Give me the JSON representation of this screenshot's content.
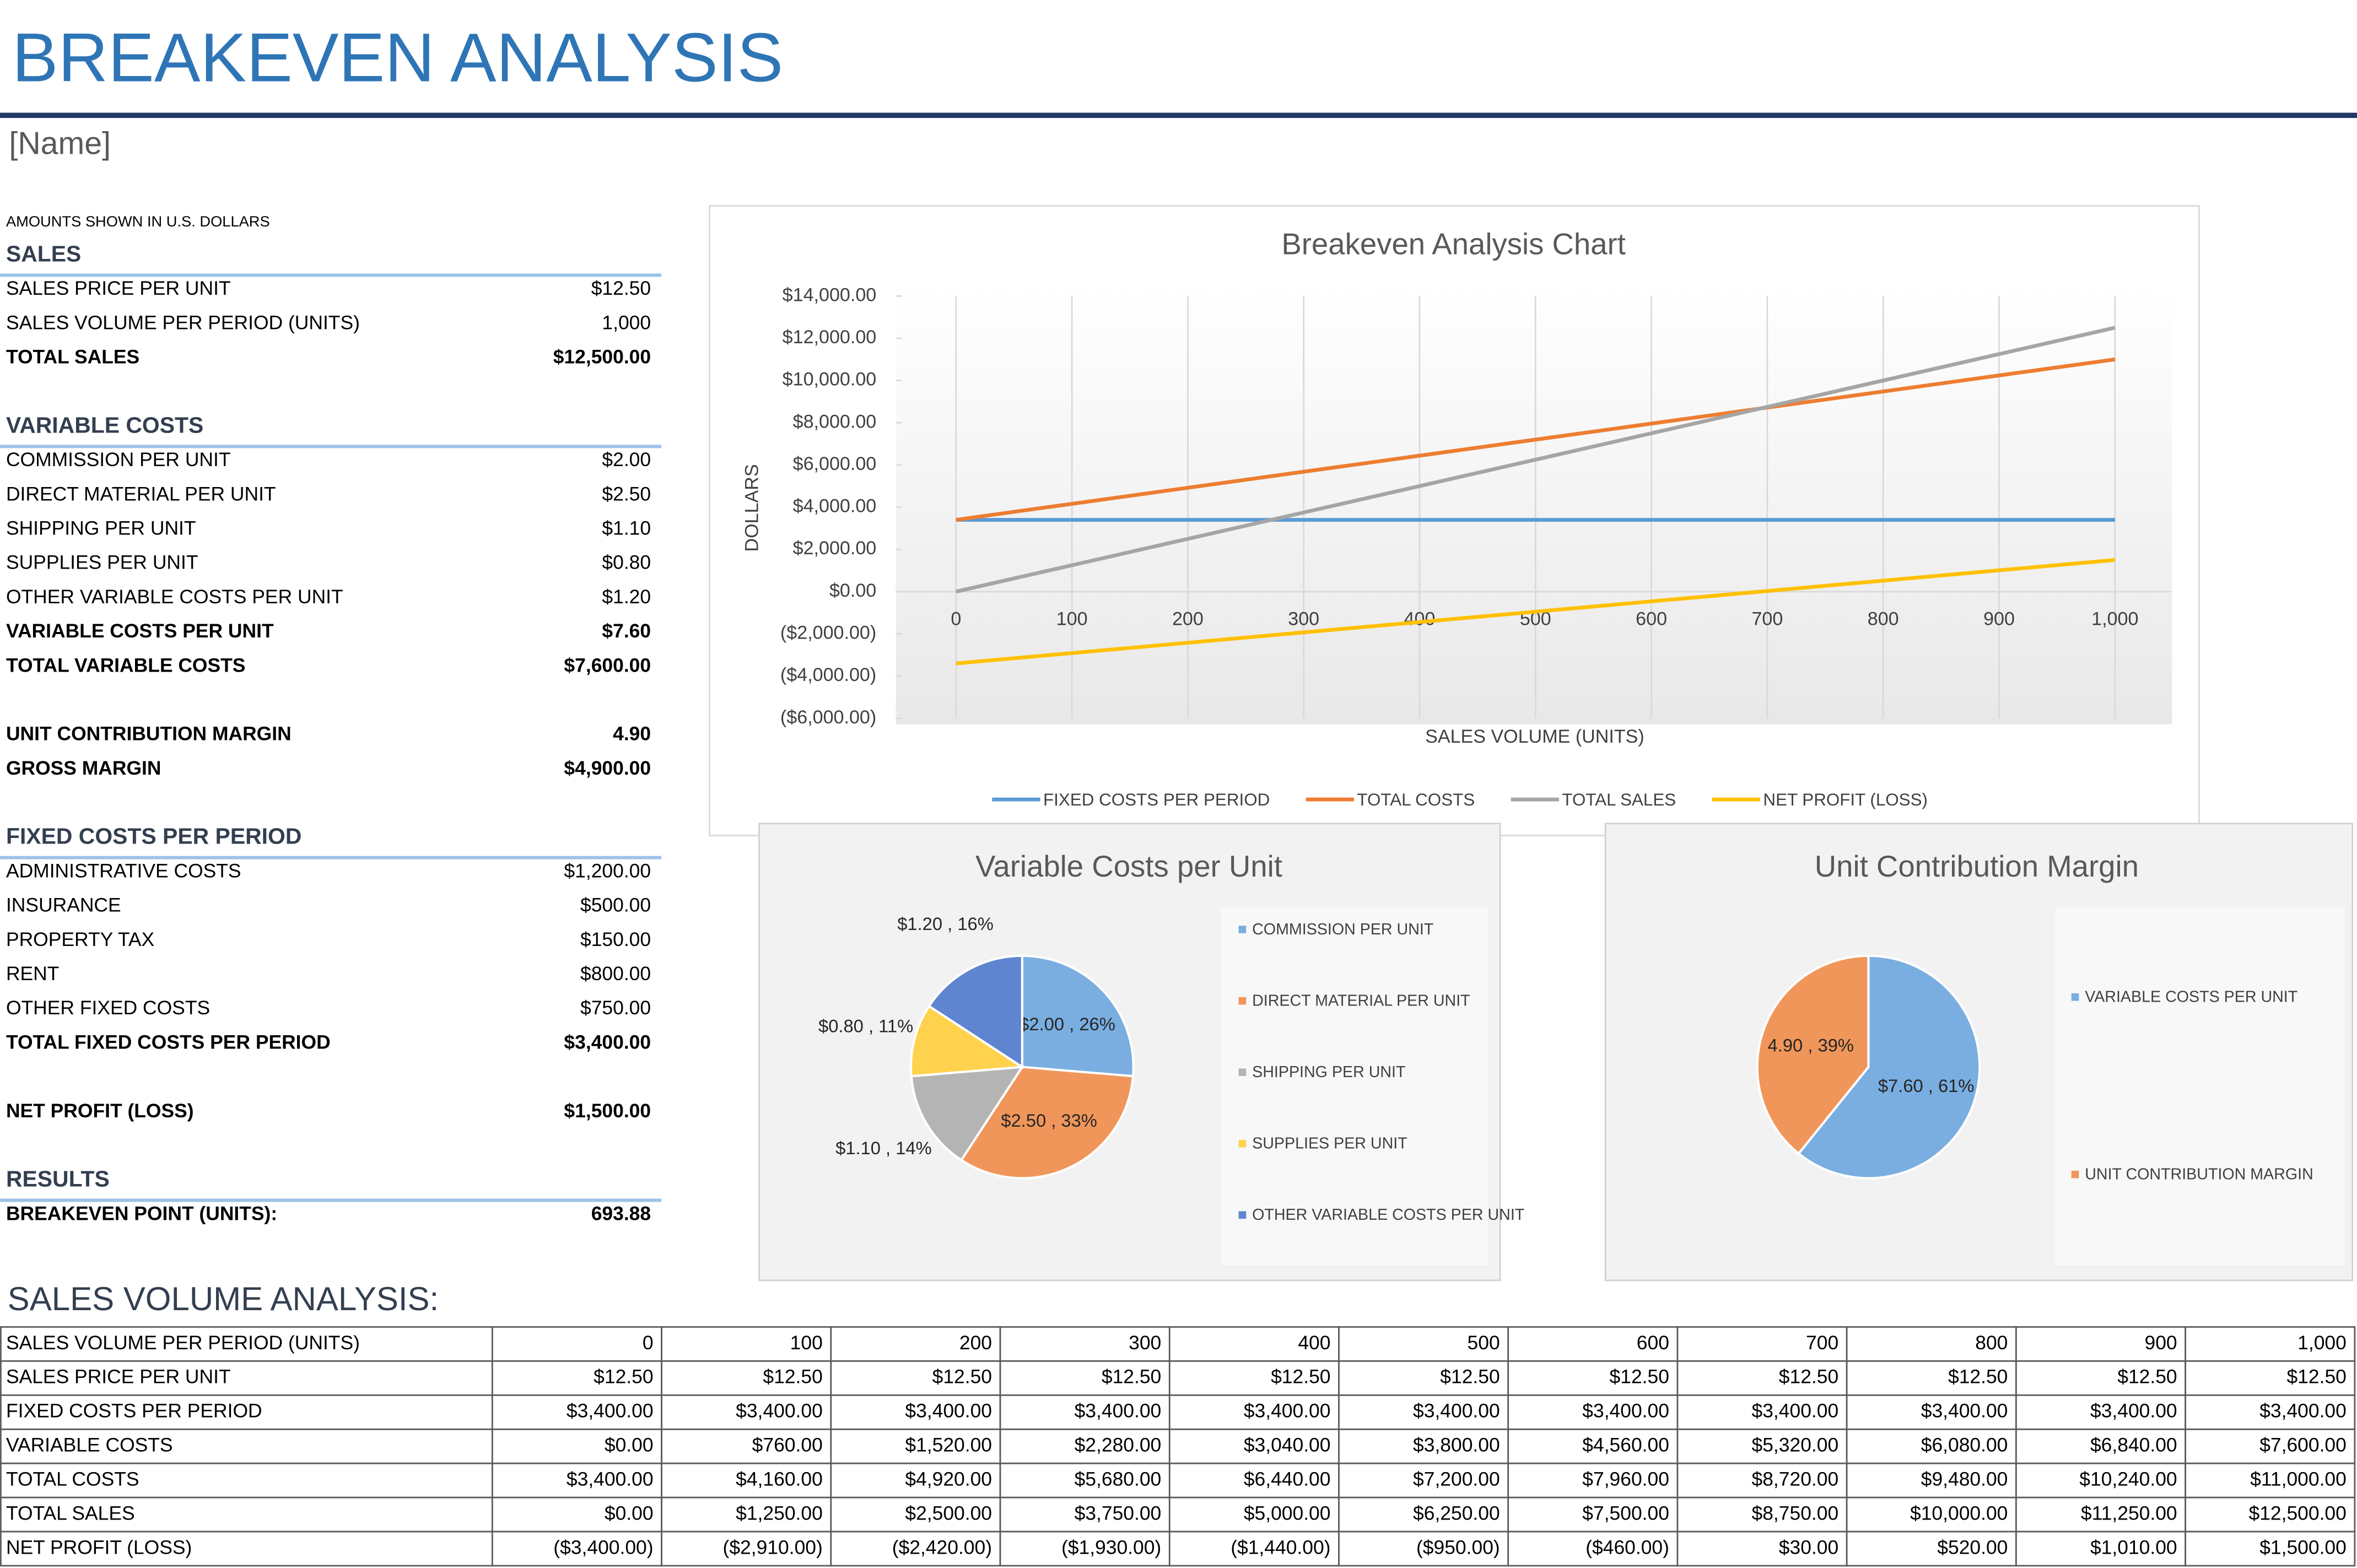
{
  "header": {
    "title": "BREAKEVEN ANALYSIS",
    "name": "[Name]",
    "note": "AMOUNTS SHOWN IN U.S. DOLLARS"
  },
  "sections": [
    {
      "title": "SALES",
      "rows": [
        {
          "label": "SALES PRICE PER UNIT",
          "value": "$12.50"
        },
        {
          "label": "SALES VOLUME PER PERIOD (UNITS)",
          "value": "1,000"
        },
        {
          "label": "TOTAL SALES",
          "value": "$12,500.00",
          "bold": true
        }
      ]
    },
    {
      "title": "VARIABLE COSTS",
      "rows": [
        {
          "label": "COMMISSION PER UNIT",
          "value": "$2.00"
        },
        {
          "label": "DIRECT MATERIAL PER UNIT",
          "value": "$2.50"
        },
        {
          "label": "SHIPPING PER UNIT",
          "value": "$1.10"
        },
        {
          "label": "SUPPLIES PER UNIT",
          "value": "$0.80"
        },
        {
          "label": "OTHER VARIABLE COSTS PER UNIT",
          "value": "$1.20"
        },
        {
          "label": "VARIABLE COSTS PER UNIT",
          "value": "$7.60",
          "bold": true
        },
        {
          "label": "TOTAL VARIABLE COSTS",
          "value": "$7,600.00",
          "bold": true
        }
      ]
    },
    {
      "rows": [
        {
          "label": "UNIT CONTRIBUTION MARGIN",
          "value": "4.90",
          "bold": true
        },
        {
          "label": "GROSS MARGIN",
          "value": "$4,900.00",
          "bold": true
        }
      ]
    },
    {
      "title": "FIXED COSTS PER PERIOD",
      "rows": [
        {
          "label": "ADMINISTRATIVE COSTS",
          "value": "$1,200.00"
        },
        {
          "label": "INSURANCE",
          "value": "$500.00"
        },
        {
          "label": "PROPERTY TAX",
          "value": "$150.00"
        },
        {
          "label": "RENT",
          "value": "$800.00"
        },
        {
          "label": "OTHER FIXED COSTS",
          "value": "$750.00"
        },
        {
          "label": "TOTAL FIXED COSTS PER PERIOD",
          "value": "$3,400.00",
          "bold": true
        }
      ]
    },
    {
      "rows": [
        {
          "label": "NET PROFIT (LOSS)",
          "value": "$1,500.00",
          "bold": true
        }
      ]
    },
    {
      "title": "RESULTS",
      "rows": [
        {
          "label": "BREAKEVEN POINT (UNITS):",
          "value": "693.88",
          "bold": true
        }
      ]
    }
  ],
  "table": {
    "title": "SALES VOLUME ANALYSIS:",
    "negative_color": "#c00000",
    "rows": [
      {
        "label": "SALES VOLUME PER PERIOD (UNITS)",
        "cells": [
          "0",
          "100",
          "200",
          "300",
          "400",
          "500",
          "600",
          "700",
          "800",
          "900",
          "1,000"
        ]
      },
      {
        "label": "SALES PRICE PER UNIT",
        "cells": [
          "$12.50",
          "$12.50",
          "$12.50",
          "$12.50",
          "$12.50",
          "$12.50",
          "$12.50",
          "$12.50",
          "$12.50",
          "$12.50",
          "$12.50"
        ]
      },
      {
        "label": "FIXED COSTS PER PERIOD",
        "cells": [
          "$3,400.00",
          "$3,400.00",
          "$3,400.00",
          "$3,400.00",
          "$3,400.00",
          "$3,400.00",
          "$3,400.00",
          "$3,400.00",
          "$3,400.00",
          "$3,400.00",
          "$3,400.00"
        ]
      },
      {
        "label": "VARIABLE COSTS",
        "cells": [
          "$0.00",
          "$760.00",
          "$1,520.00",
          "$2,280.00",
          "$3,040.00",
          "$3,800.00",
          "$4,560.00",
          "$5,320.00",
          "$6,080.00",
          "$6,840.00",
          "$7,600.00"
        ]
      },
      {
        "label": "TOTAL COSTS",
        "cells": [
          "$3,400.00",
          "$4,160.00",
          "$4,920.00",
          "$5,680.00",
          "$6,440.00",
          "$7,200.00",
          "$7,960.00",
          "$8,720.00",
          "$9,480.00",
          "$10,240.00",
          "$11,000.00"
        ]
      },
      {
        "label": "TOTAL SALES",
        "cells": [
          "$0.00",
          "$1,250.00",
          "$2,500.00",
          "$3,750.00",
          "$5,000.00",
          "$6,250.00",
          "$7,500.00",
          "$8,750.00",
          "$10,000.00",
          "$11,250.00",
          "$12,500.00"
        ]
      },
      {
        "label": "NET PROFIT (LOSS)",
        "cells": [
          "($3,400.00)",
          "($2,910.00)",
          "($2,420.00)",
          "($1,930.00)",
          "($1,440.00)",
          "($950.00)",
          "($460.00)",
          "$30.00",
          "$520.00",
          "$1,010.00",
          "$1,500.00"
        ]
      }
    ]
  },
  "chart_data": [
    {
      "type": "line",
      "title": "Breakeven Analysis Chart",
      "x_label": "SALES VOLUME (UNITS)",
      "y_label": "DOLLARS",
      "x": [
        0,
        100,
        200,
        300,
        400,
        500,
        600,
        700,
        800,
        900,
        1000
      ],
      "xlim": [
        0,
        1000
      ],
      "xticks": [
        0,
        100,
        200,
        300,
        400,
        500,
        600,
        700,
        800,
        900,
        {
          "value": 1000,
          "label": "1,000"
        }
      ],
      "ylim": [
        -6000,
        14000
      ],
      "yticks": [
        {
          "value": 14000,
          "label": "$14,000.00"
        },
        {
          "value": 12000,
          "label": "$12,000.00"
        },
        {
          "value": 10000,
          "label": "$10,000.00"
        },
        {
          "value": 8000,
          "label": "$8,000.00"
        },
        {
          "value": 6000,
          "label": "$6,000.00"
        },
        {
          "value": 4000,
          "label": "$4,000.00"
        },
        {
          "value": 2000,
          "label": "$2,000.00"
        },
        {
          "value": 0,
          "label": "$0.00"
        },
        {
          "value": -2000,
          "label": "($2,000.00)"
        },
        {
          "value": -4000,
          "label": "($4,000.00)"
        },
        {
          "value": -6000,
          "label": "($6,000.00)"
        }
      ],
      "negative_color": "#c00000",
      "grid": "x",
      "legend": "bottom",
      "series": [
        {
          "name": "FIXED COSTS PER PERIOD",
          "color": "#5b9bd5",
          "values": [
            3400,
            3400,
            3400,
            3400,
            3400,
            3400,
            3400,
            3400,
            3400,
            3400,
            3400
          ]
        },
        {
          "name": "TOTAL COSTS",
          "color": "#ed7d31",
          "values": [
            3400,
            4160,
            4920,
            5680,
            6440,
            7200,
            7960,
            8720,
            9480,
            10240,
            11000
          ]
        },
        {
          "name": "TOTAL SALES",
          "color": "#a5a5a5",
          "values": [
            0,
            1250,
            2500,
            3750,
            5000,
            6250,
            7500,
            8750,
            10000,
            11250,
            12500
          ]
        },
        {
          "name": "NET PROFIT (LOSS)",
          "color": "#ffc000",
          "values": [
            -3400,
            -2910,
            -2420,
            -1930,
            -1440,
            -950,
            -460,
            30,
            520,
            1010,
            1500
          ]
        }
      ]
    },
    {
      "type": "pie",
      "title": "Variable Costs per Unit",
      "legend": "right",
      "categories": [
        "COMMISSION PER UNIT",
        "DIRECT MATERIAL PER UNIT",
        "SHIPPING PER UNIT",
        "SUPPLIES PER UNIT",
        "OTHER VARIABLE COSTS PER UNIT"
      ],
      "values": [
        2.0,
        2.5,
        1.1,
        0.8,
        1.2
      ],
      "value_labels": [
        "$2.00 , 26%",
        "$2.50 , 33%",
        "$1.10 , 14%",
        "$0.80 , 11%",
        "$1.20 , 16%"
      ],
      "colors": [
        "#7aaee0",
        "#f0965a",
        "#b4b4b4",
        "#ffd24d",
        "#5f85d0"
      ]
    },
    {
      "type": "pie",
      "title": "Unit Contribution Margin",
      "legend": "right",
      "categories": [
        "VARIABLE COSTS PER UNIT",
        "UNIT CONTRIBUTION MARGIN"
      ],
      "values": [
        7.6,
        4.9
      ],
      "value_labels": [
        "$7.60 , 61%",
        "4.90 , 39%"
      ],
      "colors": [
        "#7aaee0",
        "#f0965a"
      ]
    }
  ]
}
